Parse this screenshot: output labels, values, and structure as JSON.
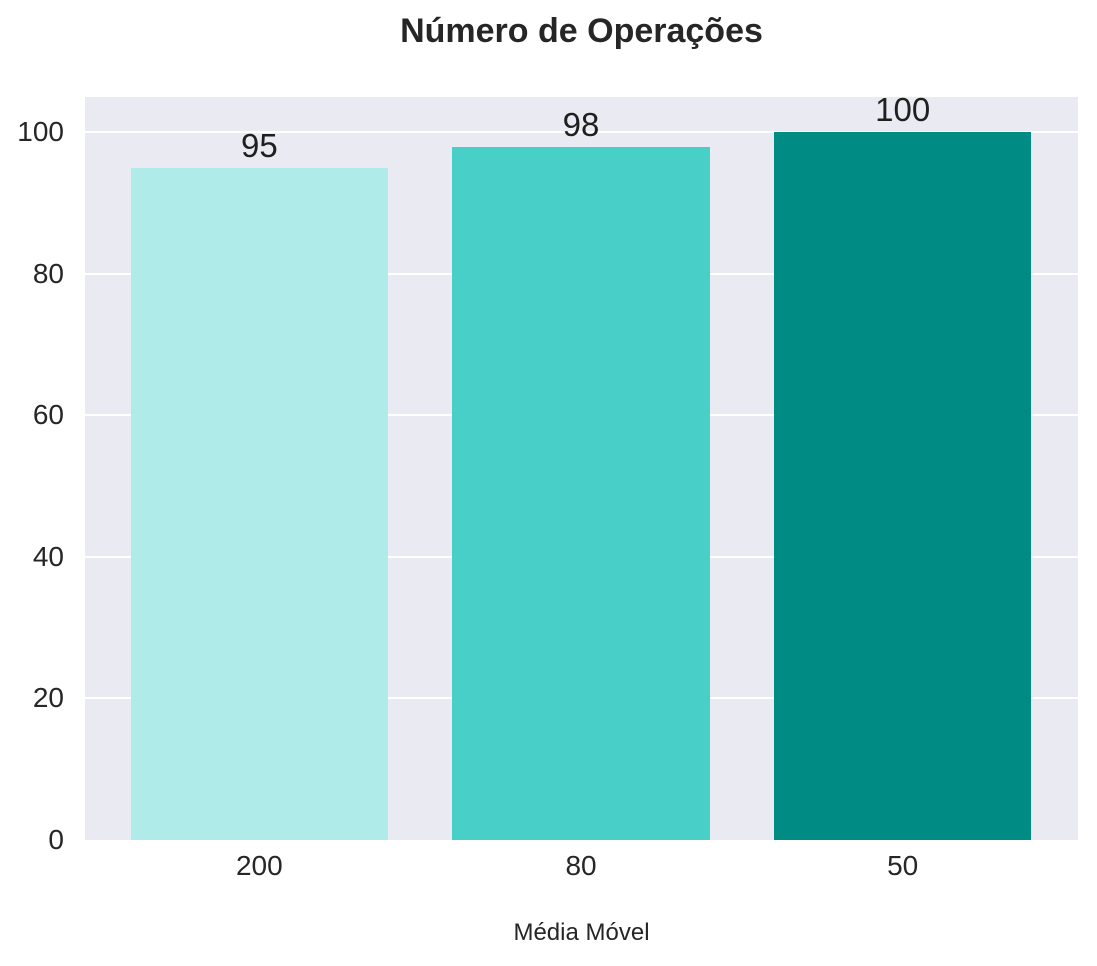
{
  "chart_data": {
    "type": "bar",
    "title": "Número de Operações",
    "xlabel": "Média Móvel",
    "ylabel": "",
    "categories": [
      "200",
      "80",
      "50"
    ],
    "values": [
      95,
      98,
      100
    ],
    "bar_labels": [
      "95",
      "98",
      "100"
    ],
    "bar_colors": [
      "#aeebe9",
      "#48cfc7",
      "#008c85"
    ],
    "yticks": [
      0,
      20,
      40,
      60,
      80,
      100
    ],
    "ylim": [
      0,
      105
    ],
    "grid": "on",
    "legend": "none",
    "plot_background": "#eaeaf2",
    "grid_color": "#ffffff",
    "figure_background": "#ffffff",
    "tick_color": "#262626",
    "title_color": "#262626",
    "value_label_color": "#1f1f1f"
  }
}
